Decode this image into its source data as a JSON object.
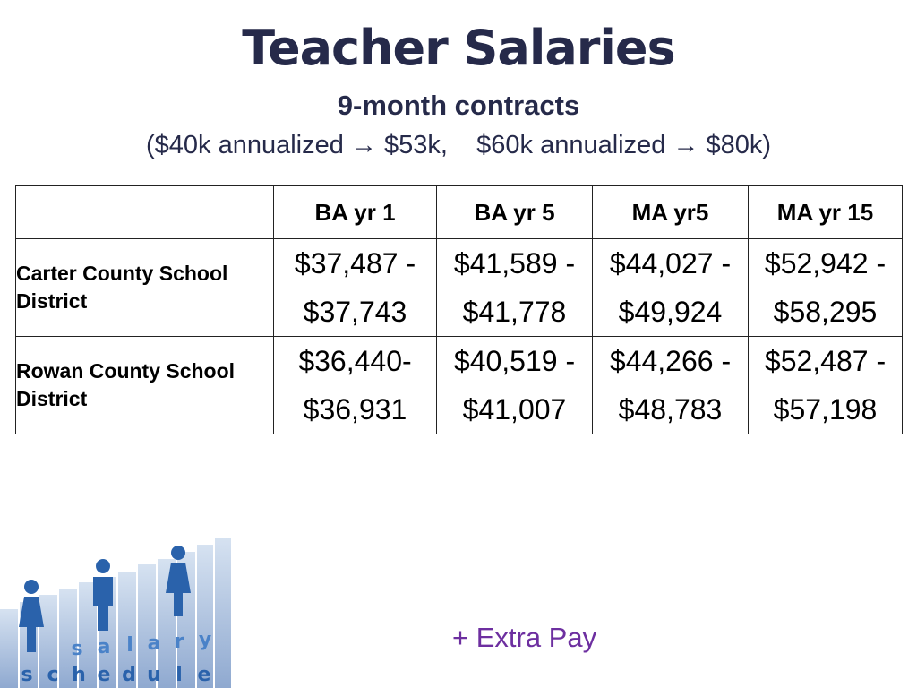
{
  "header": {
    "title": "Teacher Salaries",
    "subtitle": "9-month contracts",
    "note": "($40k annualized → $53k,    $60k annualized → $80k)"
  },
  "table": {
    "columns": [
      "",
      "BA yr 1",
      "BA yr 5",
      "MA yr5",
      "MA yr 15"
    ],
    "rows": [
      {
        "district": "Carter County School District",
        "cells": [
          {
            "low": "$37,487 -",
            "high": "$37,743"
          },
          {
            "low": "$41,589 -",
            "high": "$41,778"
          },
          {
            "low": "$44,027 -",
            "high": "$49,924"
          },
          {
            "low": "$52,942 -",
            "high": "$58,295"
          }
        ]
      },
      {
        "district": "Rowan County School District",
        "cells": [
          {
            "low": "$36,440-",
            "high": "$36,931"
          },
          {
            "low": "$40,519 -",
            "high": "$41,007"
          },
          {
            "low": "$44,266 -",
            "high": "$48,783"
          },
          {
            "low": "$52,487 -",
            "high": "$57,198"
          }
        ]
      }
    ]
  },
  "logo": {
    "top_word": "salary",
    "bottom_word": "schedule",
    "icon": "salary-schedule-people-icon"
  },
  "footer": {
    "extra_pay": "+ Extra Pay"
  },
  "colors": {
    "title": "#262a4a",
    "district": "#1f33a8",
    "extra_pay": "#6d2fa0",
    "figures": "#2a62ab",
    "bars": "#9fb8db"
  }
}
